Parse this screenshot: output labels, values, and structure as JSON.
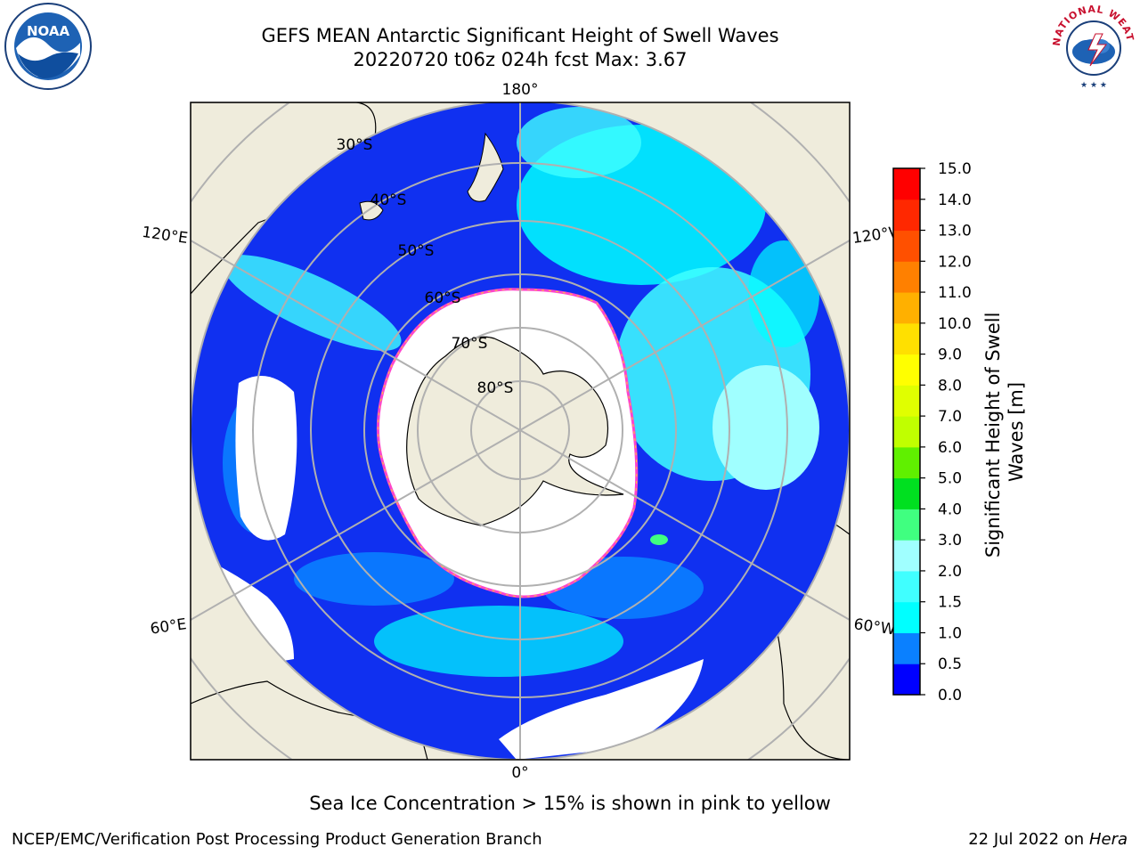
{
  "title": {
    "line1": "GEFS MEAN Antarctic Significant Height of Swell Waves",
    "line2": "20220720 t06z 024h fcst   Max: 3.67"
  },
  "map": {
    "projection": "South polar stereographic",
    "longitude_labels": [
      "180°",
      "120°E",
      "120°W",
      "60°E",
      "60°W",
      "0°"
    ],
    "latitude_labels": [
      "30°S",
      "40°S",
      "50°S",
      "60°S",
      "70°S",
      "80°S"
    ],
    "land_color": "#efecdc",
    "sea_ice_region_color": "#ffffff",
    "sea_ice_edge_colors": [
      "#ff44cc",
      "#ffcc33"
    ]
  },
  "colorbar": {
    "label": "Significant Height of Swell Waves [m]",
    "ticks": [
      "0.0",
      "0.5",
      "1.0",
      "1.5",
      "2.0",
      "3.0",
      "4.0",
      "5.0",
      "6.0",
      "7.0",
      "8.0",
      "9.0",
      "10.0",
      "11.0",
      "12.0",
      "13.0",
      "14.0",
      "15.0"
    ],
    "colors": [
      "#0000ff",
      "#0a80ff",
      "#00ffff",
      "#40ffff",
      "#a0ffff",
      "#40ff80",
      "#00e020",
      "#60f000",
      "#c0ff00",
      "#e0ff00",
      "#ffff00",
      "#ffe000",
      "#ffb000",
      "#ff8000",
      "#ff5000",
      "#ff2800",
      "#ff0000"
    ]
  },
  "ice_note": "Sea Ice Concentration > 15% is shown in pink to yellow",
  "footer": {
    "credit": "NCEP/EMC/Verification Post Processing Product Generation Branch",
    "date_prefix": "22 Jul 2022 on ",
    "machine": "Hera"
  },
  "logos": {
    "noaa_text": "NOAA",
    "nws_text": "NATIONAL WEATHER SERVICE"
  }
}
